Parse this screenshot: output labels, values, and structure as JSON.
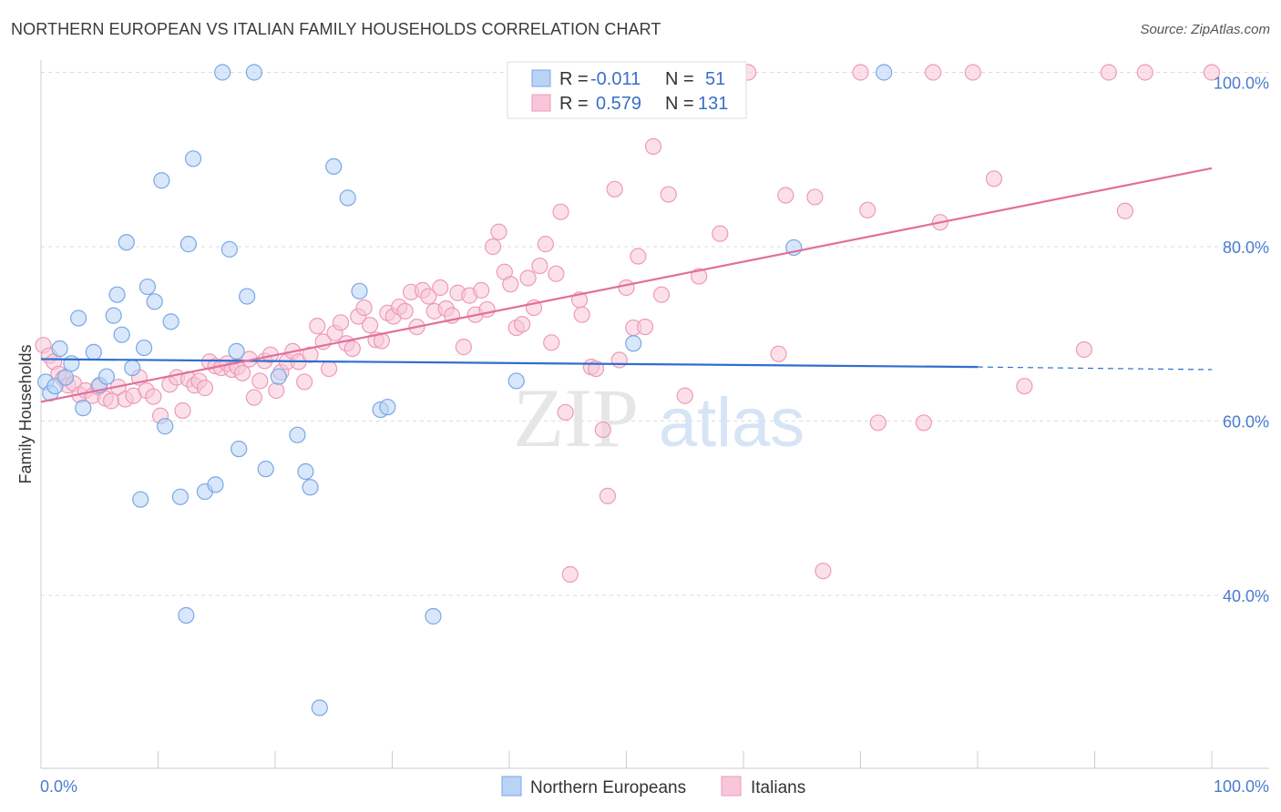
{
  "title": "NORTHERN EUROPEAN VS ITALIAN FAMILY HOUSEHOLDS CORRELATION CHART",
  "source": "Source: ZipAtlas.com",
  "watermark": {
    "zip": "ZIP",
    "atlas": "atlas"
  },
  "colors": {
    "blue_fill": "#b8d3f5",
    "blue_stroke": "#7aa7e6",
    "blue_line": "#2f6fcf",
    "pink_fill": "#f8c6d8",
    "pink_stroke": "#ee9ab8",
    "pink_line": "#e0709a",
    "axis_label": "#4a7bd0",
    "grid": "#dddddd"
  },
  "legend": {
    "rows": [
      {
        "r_label": "R =",
        "r_value": "-0.011",
        "n_label": "N =",
        "n_value": "51"
      },
      {
        "r_label": "R =",
        "r_value": "0.579",
        "n_label": "N =",
        "n_value": "131"
      }
    ]
  },
  "chart_data": {
    "type": "scatter",
    "xlabel": "",
    "ylabel": "Family Households",
    "xlim": [
      0,
      100
    ],
    "ylim": [
      20,
      102
    ],
    "x_tick_labels": [
      "0.0%",
      "100.0%"
    ],
    "y_ticks": [
      40,
      60,
      80,
      100
    ],
    "y_tick_labels": [
      "40.0%",
      "60.0%",
      "80.0%",
      "100.0%"
    ],
    "grid": true,
    "legend_position": "top-center",
    "series": [
      {
        "name": "Northern Europeans",
        "color": "blue",
        "trend": {
          "x0": 0,
          "y0": 67.1,
          "x1": 80,
          "y1": 66.2,
          "dash_to": 100,
          "dash_y": 65.9
        },
        "points": [
          [
            0.4,
            64.5
          ],
          [
            0.8,
            63.2
          ],
          [
            1.2,
            64.0
          ],
          [
            1.6,
            68.3
          ],
          [
            2.1,
            65.0
          ],
          [
            2.6,
            66.6
          ],
          [
            3.2,
            71.8
          ],
          [
            3.6,
            61.5
          ],
          [
            4.5,
            67.9
          ],
          [
            5.0,
            64.1
          ],
          [
            5.6,
            65.1
          ],
          [
            6.2,
            72.1
          ],
          [
            6.5,
            74.5
          ],
          [
            6.9,
            69.9
          ],
          [
            7.3,
            80.5
          ],
          [
            7.8,
            66.1
          ],
          [
            8.5,
            51.0
          ],
          [
            8.8,
            68.4
          ],
          [
            9.1,
            75.4
          ],
          [
            9.7,
            73.7
          ],
          [
            10.3,
            87.6
          ],
          [
            10.6,
            59.4
          ],
          [
            11.1,
            71.4
          ],
          [
            11.9,
            51.3
          ],
          [
            12.4,
            37.7
          ],
          [
            12.6,
            80.3
          ],
          [
            13.0,
            90.1
          ],
          [
            14.0,
            51.9
          ],
          [
            14.9,
            52.7
          ],
          [
            15.5,
            100.0
          ],
          [
            16.1,
            79.7
          ],
          [
            16.7,
            68.0
          ],
          [
            16.9,
            56.8
          ],
          [
            17.6,
            74.3
          ],
          [
            18.2,
            100.0
          ],
          [
            19.2,
            54.5
          ],
          [
            20.3,
            65.1
          ],
          [
            21.9,
            58.4
          ],
          [
            22.6,
            54.2
          ],
          [
            23.0,
            52.4
          ],
          [
            23.8,
            27.1
          ],
          [
            25.0,
            89.2
          ],
          [
            26.2,
            85.6
          ],
          [
            27.2,
            74.9
          ],
          [
            29.0,
            61.3
          ],
          [
            29.6,
            61.6
          ],
          [
            33.5,
            37.6
          ],
          [
            40.6,
            64.6
          ],
          [
            50.6,
            68.9
          ],
          [
            64.3,
            79.9
          ],
          [
            72.0,
            100.0
          ]
        ]
      },
      {
        "name": "Italians",
        "color": "pink",
        "trend": {
          "x0": 0,
          "y0": 62.2,
          "x1": 100,
          "y1": 89.0
        },
        "points": [
          [
            0.2,
            68.7
          ],
          [
            0.7,
            67.5
          ],
          [
            1.1,
            66.8
          ],
          [
            1.5,
            65.4
          ],
          [
            1.9,
            64.9
          ],
          [
            2.3,
            64.1
          ],
          [
            2.8,
            64.3
          ],
          [
            3.3,
            63.0
          ],
          [
            3.8,
            63.5
          ],
          [
            4.4,
            62.9
          ],
          [
            4.9,
            63.9
          ],
          [
            5.5,
            62.6
          ],
          [
            6.0,
            62.3
          ],
          [
            6.6,
            63.9
          ],
          [
            7.2,
            62.5
          ],
          [
            7.9,
            62.9
          ],
          [
            8.4,
            65.0
          ],
          [
            9.0,
            63.5
          ],
          [
            9.6,
            62.8
          ],
          [
            10.2,
            60.6
          ],
          [
            11.0,
            64.2
          ],
          [
            11.6,
            65.0
          ],
          [
            12.1,
            61.2
          ],
          [
            12.6,
            64.8
          ],
          [
            13.1,
            64.1
          ],
          [
            13.5,
            64.6
          ],
          [
            14.0,
            63.8
          ],
          [
            14.4,
            66.8
          ],
          [
            14.9,
            66.3
          ],
          [
            15.4,
            66.1
          ],
          [
            15.9,
            66.6
          ],
          [
            16.3,
            65.9
          ],
          [
            16.8,
            66.2
          ],
          [
            17.2,
            65.5
          ],
          [
            17.8,
            67.1
          ],
          [
            18.2,
            62.7
          ],
          [
            18.7,
            64.6
          ],
          [
            19.1,
            66.9
          ],
          [
            19.6,
            67.6
          ],
          [
            20.1,
            63.5
          ],
          [
            20.5,
            65.6
          ],
          [
            21.0,
            66.8
          ],
          [
            21.5,
            68.0
          ],
          [
            22.0,
            66.8
          ],
          [
            22.5,
            64.5
          ],
          [
            23.0,
            67.6
          ],
          [
            23.6,
            70.9
          ],
          [
            24.1,
            69.1
          ],
          [
            24.6,
            66.0
          ],
          [
            25.1,
            70.1
          ],
          [
            25.6,
            71.3
          ],
          [
            26.1,
            68.9
          ],
          [
            26.6,
            68.3
          ],
          [
            27.1,
            72.0
          ],
          [
            27.6,
            73.0
          ],
          [
            28.1,
            71.0
          ],
          [
            28.6,
            69.3
          ],
          [
            29.1,
            69.2
          ],
          [
            29.6,
            72.4
          ],
          [
            30.1,
            72.0
          ],
          [
            30.6,
            73.1
          ],
          [
            31.1,
            72.6
          ],
          [
            31.6,
            74.8
          ],
          [
            32.1,
            70.8
          ],
          [
            32.6,
            75.0
          ],
          [
            33.1,
            74.3
          ],
          [
            33.6,
            72.6
          ],
          [
            34.1,
            75.3
          ],
          [
            34.6,
            72.9
          ],
          [
            35.1,
            72.1
          ],
          [
            35.6,
            74.7
          ],
          [
            36.1,
            68.5
          ],
          [
            36.6,
            74.4
          ],
          [
            37.1,
            72.2
          ],
          [
            37.6,
            75.0
          ],
          [
            38.1,
            72.8
          ],
          [
            38.6,
            80.0
          ],
          [
            39.1,
            81.7
          ],
          [
            39.6,
            77.1
          ],
          [
            40.1,
            75.7
          ],
          [
            40.6,
            70.7
          ],
          [
            41.1,
            71.1
          ],
          [
            41.6,
            76.4
          ],
          [
            42.1,
            73.0
          ],
          [
            42.6,
            77.8
          ],
          [
            43.1,
            80.3
          ],
          [
            43.6,
            69.0
          ],
          [
            44.0,
            76.9
          ],
          [
            44.4,
            84.0
          ],
          [
            44.8,
            61.0
          ],
          [
            45.2,
            42.4
          ],
          [
            46.0,
            73.9
          ],
          [
            46.2,
            72.2
          ],
          [
            47.0,
            66.2
          ],
          [
            47.4,
            66.0
          ],
          [
            48.0,
            59.0
          ],
          [
            48.4,
            51.4
          ],
          [
            49.0,
            86.6
          ],
          [
            49.4,
            67.0
          ],
          [
            50.0,
            75.3
          ],
          [
            50.6,
            70.7
          ],
          [
            51.0,
            78.9
          ],
          [
            51.6,
            70.8
          ],
          [
            52.3,
            91.5
          ],
          [
            53.0,
            74.5
          ],
          [
            53.6,
            86.0
          ],
          [
            55.0,
            62.9
          ],
          [
            56.0,
            100.0
          ],
          [
            56.2,
            76.6
          ],
          [
            58.0,
            81.5
          ],
          [
            60.4,
            100.0
          ],
          [
            63.0,
            67.7
          ],
          [
            63.6,
            85.9
          ],
          [
            66.1,
            85.7
          ],
          [
            66.8,
            42.8
          ],
          [
            70.0,
            100.0
          ],
          [
            70.6,
            84.2
          ],
          [
            71.5,
            59.8
          ],
          [
            75.4,
            59.8
          ],
          [
            76.2,
            100.0
          ],
          [
            76.8,
            82.8
          ],
          [
            79.6,
            100.0
          ],
          [
            81.4,
            87.8
          ],
          [
            84.0,
            64.0
          ],
          [
            89.1,
            68.2
          ],
          [
            91.2,
            100.0
          ],
          [
            92.6,
            84.1
          ],
          [
            94.3,
            100.0
          ],
          [
            100.0,
            100.0
          ]
        ]
      }
    ]
  }
}
